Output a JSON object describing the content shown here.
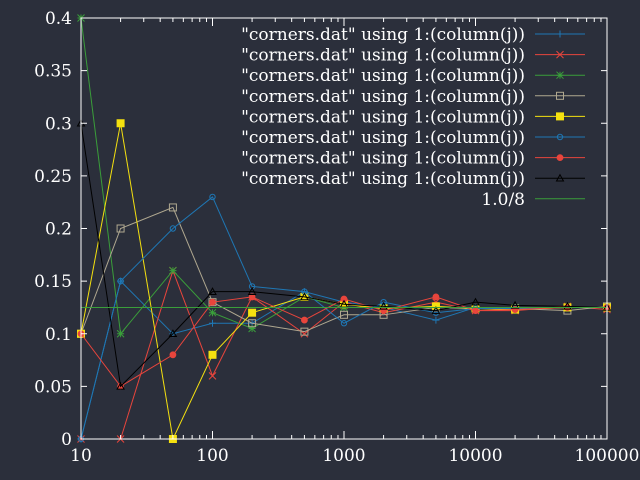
{
  "chart_data": {
    "type": "line",
    "title": "",
    "xlabel": "",
    "ylabel": "",
    "x_scale": "log",
    "xlim": [
      10,
      100000
    ],
    "ylim": [
      0,
      0.4
    ],
    "grid": false,
    "legend_position": "top-right",
    "x_ticks": [
      10,
      100,
      1000,
      10000,
      100000
    ],
    "x_tick_labels": [
      "10",
      "100",
      "1000",
      "10000",
      "100000"
    ],
    "y_ticks": [
      0,
      0.05,
      0.1,
      0.15,
      0.2,
      0.25,
      0.3,
      0.35,
      0.4
    ],
    "y_tick_labels": [
      "0",
      "0.05",
      "0.1",
      "0.15",
      "0.2",
      "0.25",
      "0.3",
      "0.35",
      "0.4"
    ],
    "x": [
      10,
      20,
      50,
      100,
      200,
      500,
      1000,
      2000,
      5000,
      10000,
      20000,
      50000,
      100000
    ],
    "series": [
      {
        "name": "\"corners.dat\" using 1:(column(j))",
        "color": "#1f77b4",
        "marker": "plus",
        "values": [
          0.0,
          0.15,
          0.1,
          0.11,
          0.11,
          0.14,
          0.13,
          0.125,
          0.113,
          0.125,
          0.124,
          0.125,
          0.125
        ]
      },
      {
        "name": "\"corners.dat\" using 1:(column(j))",
        "color": "#e8453c",
        "marker": "cross",
        "values": [
          0.0,
          0.0,
          0.16,
          0.06,
          0.135,
          0.1,
          0.13,
          0.12,
          0.13,
          0.122,
          0.122,
          0.126,
          0.123
        ]
      },
      {
        "name": "\"corners.dat\" using 1:(column(j))",
        "color": "#3a9e3a",
        "marker": "star",
        "values": [
          0.4,
          0.1,
          0.16,
          0.12,
          0.105,
          0.135,
          0.125,
          0.125,
          0.125,
          0.125,
          0.125,
          0.125,
          0.125
        ]
      },
      {
        "name": "\"corners.dat\" using 1:(column(j))",
        "color": "#b0a890",
        "marker": "square-open",
        "values": [
          0.1,
          0.2,
          0.22,
          0.13,
          0.11,
          0.102,
          0.118,
          0.118,
          0.125,
          0.124,
          0.124,
          0.122,
          0.126
        ]
      },
      {
        "name": "\"corners.dat\" using 1:(column(j))",
        "color": "#f5e10f",
        "marker": "square-filled",
        "values": [
          0.1,
          0.3,
          0.0,
          0.08,
          0.12,
          0.135,
          0.128,
          0.124,
          0.126,
          0.124,
          0.123,
          0.125,
          0.125
        ]
      },
      {
        "name": "\"corners.dat\" using 1:(column(j))",
        "color": "#1f77b4",
        "marker": "circle-open",
        "values": [
          0.0,
          0.15,
          0.2,
          0.23,
          0.145,
          0.14,
          0.11,
          0.13,
          0.12,
          0.124,
          0.124,
          0.125,
          0.125
        ]
      },
      {
        "name": "\"corners.dat\" using 1:(column(j))",
        "color": "#e8453c",
        "marker": "circle-filled",
        "values": [
          0.1,
          0.05,
          0.08,
          0.13,
          0.135,
          0.113,
          0.133,
          0.122,
          0.135,
          0.122,
          0.123,
          0.125,
          0.125
        ]
      },
      {
        "name": "\"corners.dat\" using 1:(column(j))",
        "color": "#000000",
        "marker": "triangle-open",
        "values": [
          0.3,
          0.05,
          0.1,
          0.14,
          0.14,
          0.135,
          0.128,
          0.126,
          0.122,
          0.13,
          0.127,
          0.126,
          0.125
        ]
      },
      {
        "name": "1.0/8",
        "color": "#3a9e3a",
        "marker": "none",
        "constant": 0.125
      }
    ]
  }
}
